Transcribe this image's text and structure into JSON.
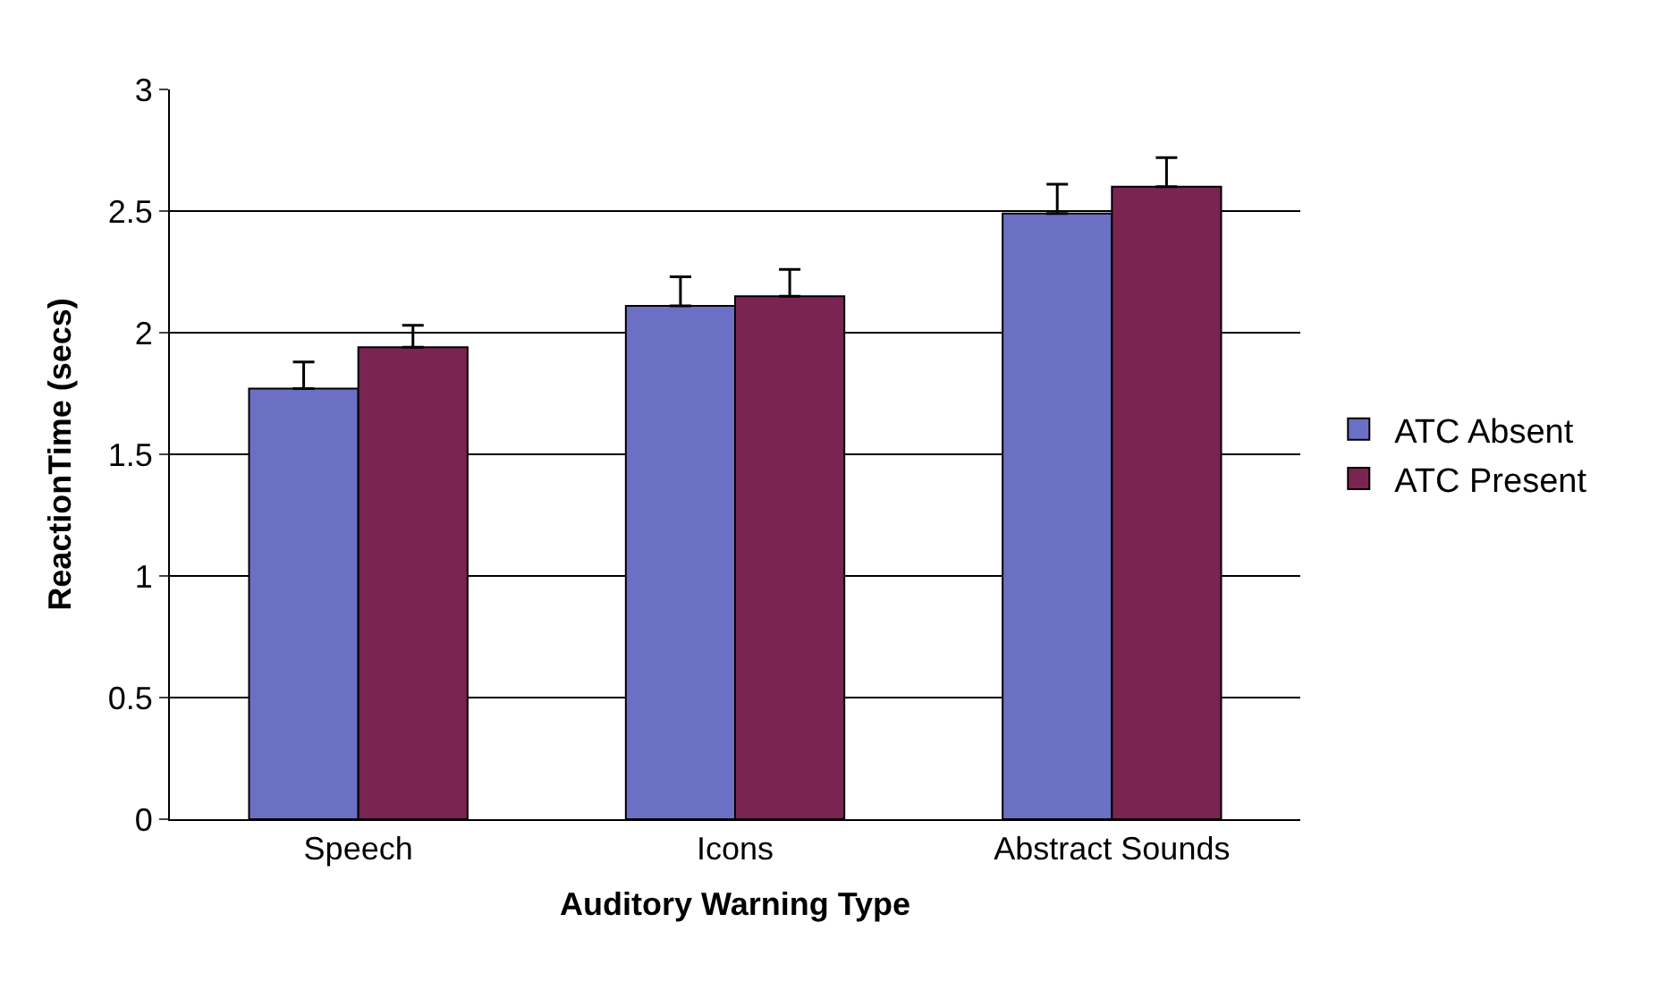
{
  "chart_data": {
    "type": "bar",
    "xlabel": "Auditory Warning Type",
    "ylabel": "ReactionTime (secs)",
    "categories": [
      "Speech",
      "Icons",
      "Abstract Sounds"
    ],
    "series": [
      {
        "name": "ATC Absent",
        "color": "#6b70c4",
        "values": [
          1.77,
          2.11,
          2.49
        ],
        "errors": [
          [
            1.77,
            1.88
          ],
          [
            2.11,
            2.23
          ],
          [
            2.49,
            2.61
          ]
        ]
      },
      {
        "name": "ATC Present",
        "color": "#7a2452",
        "values": [
          1.94,
          2.15,
          2.6
        ],
        "errors": [
          [
            1.94,
            2.03
          ],
          [
            2.15,
            2.26
          ],
          [
            2.6,
            2.72
          ]
        ]
      }
    ],
    "ylim": [
      0,
      3
    ],
    "yticks": [
      0,
      0.5,
      1,
      1.5,
      2,
      2.5,
      3
    ],
    "grid": "y",
    "legend": "right"
  }
}
